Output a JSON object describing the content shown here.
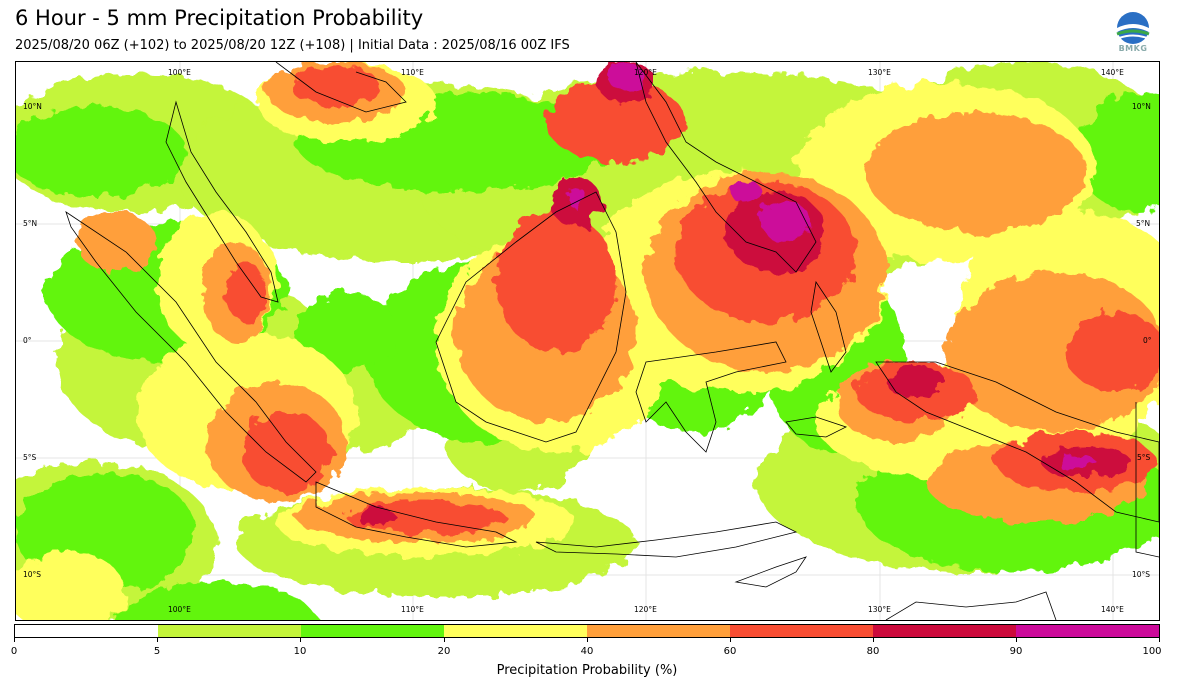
{
  "header": {
    "title": "6 Hour - 5 mm Precipitation Probability",
    "subtitle": "2025/08/20 06Z (+102) to 2025/08/20 12Z (+108) | Initial Data : 2025/08/16 00Z IFS",
    "logo_text": "BMKG"
  },
  "map": {
    "lon_labels": [
      "100°E",
      "110°E",
      "120°E",
      "130°E",
      "140°E"
    ],
    "lat_labels": [
      "10°N",
      "5°N",
      "0°",
      "5°S",
      "10°S"
    ]
  },
  "colorbar": {
    "title": "Precipitation Probability (%)",
    "ticks": [
      "0",
      "5",
      "10",
      "20",
      "40",
      "60",
      "80",
      "90",
      "100"
    ],
    "colors": [
      "#ffffff",
      "#c4f53a",
      "#62f50f",
      "#ffff5c",
      "#ff9f3a",
      "#f84d32",
      "#cc0a3c",
      "#cc0a9a"
    ]
  }
}
